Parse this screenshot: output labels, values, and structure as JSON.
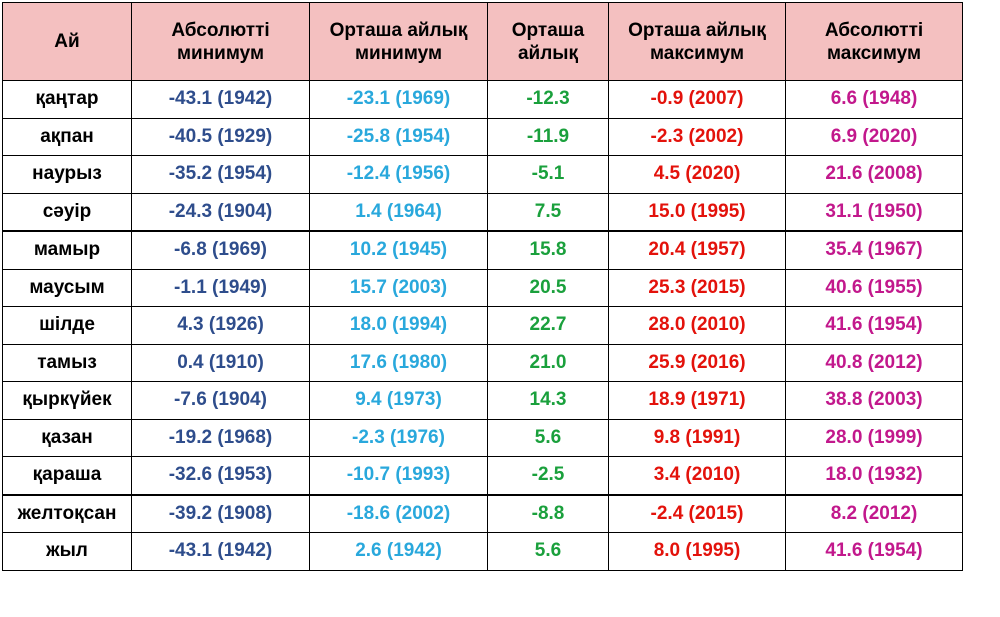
{
  "colors": {
    "header_bg": "#f4c0c0",
    "month": "#000000",
    "absolute_min": "#2e4d8c",
    "average_min": "#29a8dc",
    "average": "#1aa03c",
    "average_max": "#e3120b",
    "absolute_max": "#c2188c"
  },
  "headers": [
    "Ай",
    "Абсолютті минимум",
    "Орташа айлық минимум",
    "Орташа айлық",
    "Орташа айлық максимум",
    "Абсолютті максимум"
  ],
  "rows": [
    [
      "қаңтар",
      "-43.1 (1942)",
      "-23.1 (1969)",
      "-12.3",
      "-0.9 (2007)",
      "6.6 (1948)"
    ],
    [
      "ақпан",
      "-40.5 (1929)",
      "-25.8 (1954)",
      "-11.9",
      "-2.3 (2002)",
      "6.9 (2020)"
    ],
    [
      "наурыз",
      "-35.2 (1954)",
      "-12.4 (1956)",
      "-5.1",
      "4.5 (2020)",
      "21.6 (2008)"
    ],
    [
      "сәуір",
      "-24.3 (1904)",
      "1.4 (1964)",
      "7.5",
      "15.0 (1995)",
      "31.1 (1950)"
    ],
    [
      "мамыр",
      "-6.8 (1969)",
      "10.2 (1945)",
      "15.8",
      "20.4 (1957)",
      "35.4 (1967)"
    ],
    [
      "маусым",
      "-1.1 (1949)",
      "15.7 (2003)",
      "20.5",
      "25.3 (2015)",
      "40.6 (1955)"
    ],
    [
      "шілде",
      "4.3 (1926)",
      "18.0 (1994)",
      "22.7",
      "28.0 (2010)",
      "41.6 (1954)"
    ],
    [
      "тамыз",
      "0.4 (1910)",
      "17.6 (1980)",
      "21.0",
      "25.9 (2016)",
      "40.8 (2012)"
    ],
    [
      "қыркүйек",
      "-7.6 (1904)",
      "9.4 (1973)",
      "14.3",
      "18.9 (1971)",
      "38.8 (2003)"
    ],
    [
      "қазан",
      "-19.2 (1968)",
      "-2.3 (1976)",
      "5.6",
      "9.8 (1991)",
      "28.0 (1999)"
    ],
    [
      "қараша",
      "-32.6 (1953)",
      "-10.7 (1993)",
      "-2.5",
      "3.4 (2010)",
      "18.0 (1932)"
    ],
    [
      "желтоқсан",
      "-39.2 (1908)",
      "-18.6 (2002)",
      "-8.8",
      "-2.4 (2015)",
      "8.2 (2012)"
    ],
    [
      "жыл",
      "-43.1 (1942)",
      "2.6 (1942)",
      "5.6",
      "8.0 (1995)",
      "41.6 (1954)"
    ]
  ]
}
